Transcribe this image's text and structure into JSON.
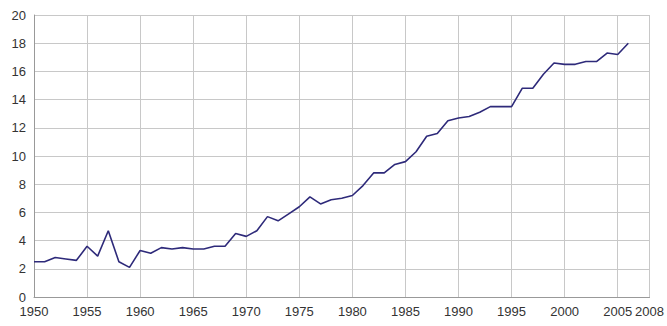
{
  "chart_data": {
    "type": "line",
    "color": "#2e2a7a",
    "grid": true,
    "x": [
      1950,
      1951,
      1952,
      1953,
      1954,
      1955,
      1956,
      1957,
      1958,
      1959,
      1960,
      1961,
      1962,
      1963,
      1964,
      1965,
      1966,
      1967,
      1968,
      1969,
      1970,
      1971,
      1972,
      1973,
      1974,
      1975,
      1976,
      1977,
      1978,
      1979,
      1980,
      1981,
      1982,
      1983,
      1984,
      1985,
      1986,
      1987,
      1988,
      1989,
      1990,
      1991,
      1992,
      1993,
      1994,
      1995,
      1996,
      1997,
      1998,
      1999,
      2000,
      2001,
      2002,
      2003,
      2004,
      2005,
      2006
    ],
    "values": [
      2.5,
      2.5,
      2.8,
      2.7,
      2.6,
      3.6,
      2.9,
      4.7,
      2.5,
      2.1,
      3.3,
      3.1,
      3.5,
      3.4,
      3.5,
      3.4,
      3.4,
      3.6,
      3.6,
      4.5,
      4.3,
      4.7,
      5.7,
      5.4,
      5.9,
      6.4,
      7.1,
      6.6,
      6.9,
      7.0,
      7.2,
      7.9,
      8.8,
      8.8,
      9.4,
      9.6,
      10.3,
      11.4,
      11.6,
      12.5,
      12.7,
      12.8,
      13.1,
      13.5,
      13.5,
      13.5,
      14.8,
      14.8,
      15.8,
      16.6,
      16.5,
      16.5,
      16.7,
      16.7,
      17.3,
      17.2,
      18.0
    ],
    "xlim": [
      1950,
      2008
    ],
    "xticks": [
      1950,
      1955,
      1960,
      1965,
      1970,
      1975,
      1980,
      1985,
      1990,
      1995,
      2000,
      2005
    ],
    "ylim": [
      0,
      20
    ],
    "yticks": [
      0,
      2,
      4,
      6,
      8,
      10,
      12,
      14,
      16,
      18,
      20
    ]
  }
}
